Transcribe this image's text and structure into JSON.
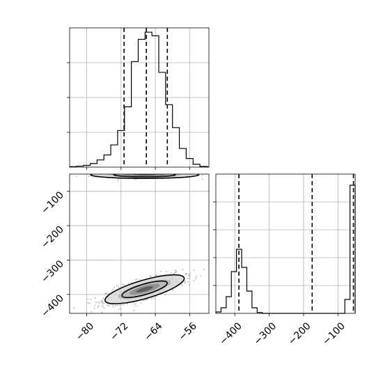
{
  "chart_data": [
    {
      "panel": "marginal-x",
      "type": "histogram",
      "xlim": [
        -84,
        -51.5
      ],
      "xticks": [
        -80,
        -72,
        -64,
        -56
      ],
      "bins": [
        {
          "x0": -84.0,
          "x1": -82.4,
          "count": 0.003
        },
        {
          "x0": -82.4,
          "x1": -80.8,
          "count": 0.007
        },
        {
          "x0": -80.8,
          "x1": -79.2,
          "count": 0.012
        },
        {
          "x0": -79.2,
          "x1": -77.6,
          "count": 0.025
        },
        {
          "x0": -77.6,
          "x1": -76.0,
          "count": 0.05
        },
        {
          "x0": -76.0,
          "x1": -74.4,
          "count": 0.085
        },
        {
          "x0": -74.4,
          "x1": -72.8,
          "count": 0.155
        },
        {
          "x0": -72.8,
          "x1": -71.2,
          "count": 0.255
        },
        {
          "x0": -71.2,
          "x1": -69.6,
          "count": 0.42
        },
        {
          "x0": -69.6,
          "x1": -68.0,
          "count": 0.735
        },
        {
          "x0": -68.0,
          "x1": -66.4,
          "count": 0.89
        },
        {
          "x0": -66.4,
          "x1": -64.8,
          "count": 0.94
        },
        {
          "x0": -64.8,
          "x1": -63.2,
          "count": 0.915
        },
        {
          "x0": -63.2,
          "x1": -61.6,
          "count": 0.66
        },
        {
          "x0": -61.6,
          "x1": -60.0,
          "count": 0.435
        },
        {
          "x0": -60.0,
          "x1": -58.4,
          "count": 0.275
        },
        {
          "x0": -58.4,
          "x1": -56.8,
          "count": 0.13
        },
        {
          "x0": -56.8,
          "x1": -55.2,
          "count": 0.06
        },
        {
          "x0": -55.2,
          "x1": -53.6,
          "count": 0.02
        },
        {
          "x0": -53.6,
          "x1": -52.0,
          "count": 0.005
        }
      ],
      "quantiles": [
        -71.3,
        -66.1,
        -61.2
      ]
    },
    {
      "panel": "joint",
      "type": "scatter-density",
      "xlim": [
        -84,
        -51.5
      ],
      "ylim": [
        -455,
        -50
      ],
      "xticks": [
        -80,
        -72,
        -64,
        -56
      ],
      "yticks": [
        -100,
        -200,
        -300,
        -400
      ],
      "xticklabels": [
        "−80",
        "−72",
        "−64",
        "−56"
      ],
      "yticklabels": [
        "−100",
        "−200",
        "−300",
        "−400"
      ],
      "clusters": [
        {
          "mean_x": -66.5,
          "mean_y": -52,
          "sd_x": 6.0,
          "sd_y": 5,
          "rho": 0.0,
          "n": 420
        },
        {
          "mean_x": -66.5,
          "mean_y": -385,
          "sd_x": 4.4,
          "sd_y": 20,
          "rho": 0.75,
          "n": 1000
        }
      ]
    },
    {
      "panel": "marginal-y",
      "type": "histogram",
      "xlim": [
        -455,
        -50
      ],
      "xticks": [
        -400,
        -300,
        -200,
        -100
      ],
      "xticklabels": [
        "−400",
        "−300",
        "−200",
        "−100"
      ],
      "bins": [
        {
          "x0": -455,
          "x1": -440,
          "count": 0.005
        },
        {
          "x0": -440,
          "x1": -425,
          "count": 0.02
        },
        {
          "x0": -425,
          "x1": -410,
          "count": 0.06
        },
        {
          "x0": -410,
          "x1": -395,
          "count": 0.15
        },
        {
          "x0": -395,
          "x1": -380,
          "count": 0.23
        },
        {
          "x0": -380,
          "x1": -365,
          "count": 0.165
        },
        {
          "x0": -365,
          "x1": -350,
          "count": 0.08
        },
        {
          "x0": -350,
          "x1": -335,
          "count": 0.02
        },
        {
          "x0": -335,
          "x1": -320,
          "count": 0.003
        },
        {
          "x0": -320,
          "x1": -305,
          "count": 0.0
        },
        {
          "x0": -305,
          "x1": -290,
          "count": 0.0
        },
        {
          "x0": -290,
          "x1": -275,
          "count": 0.0
        },
        {
          "x0": -275,
          "x1": -260,
          "count": 0.0
        },
        {
          "x0": -260,
          "x1": -245,
          "count": 0.0
        },
        {
          "x0": -245,
          "x1": -230,
          "count": 0.0
        },
        {
          "x0": -230,
          "x1": -215,
          "count": 0.0
        },
        {
          "x0": -215,
          "x1": -200,
          "count": 0.0
        },
        {
          "x0": -200,
          "x1": -185,
          "count": 0.0
        },
        {
          "x0": -185,
          "x1": -170,
          "count": 0.0
        },
        {
          "x0": -170,
          "x1": -155,
          "count": 0.0
        },
        {
          "x0": -155,
          "x1": -140,
          "count": 0.0
        },
        {
          "x0": -140,
          "x1": -125,
          "count": 0.0
        },
        {
          "x0": -125,
          "x1": -110,
          "count": 0.0
        },
        {
          "x0": -110,
          "x1": -95,
          "count": 0.0
        },
        {
          "x0": -95,
          "x1": -80,
          "count": 0.0
        },
        {
          "x0": -80,
          "x1": -65,
          "count": 0.05
        },
        {
          "x0": -65,
          "x1": -50,
          "count": 0.46
        }
      ],
      "quantiles": [
        -388,
        -175,
        -55
      ]
    }
  ]
}
